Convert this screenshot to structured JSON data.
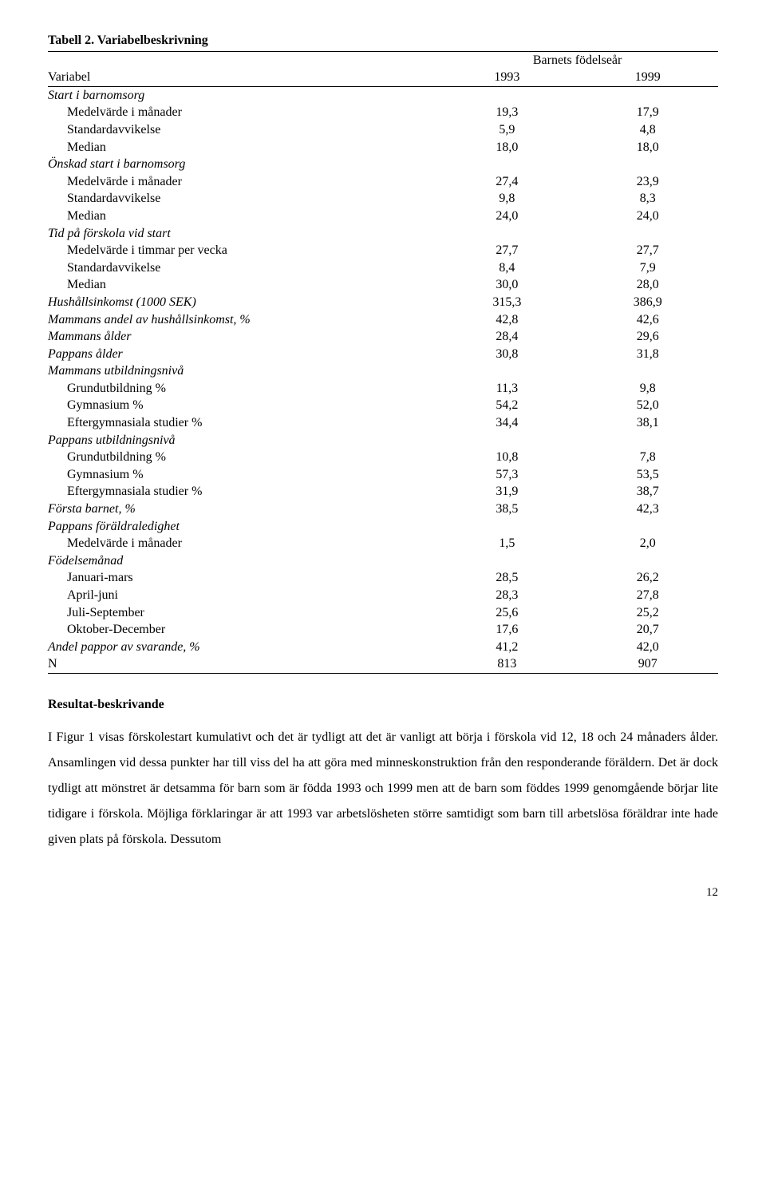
{
  "table": {
    "title": "Tabell 2. Variabelbeskrivning",
    "super_header": "Barnets födelseår",
    "col_label": "Variabel",
    "col_1993": "1993",
    "col_1999": "1999",
    "rows": [
      {
        "type": "section",
        "label": "Start i barnomsorg"
      },
      {
        "type": "sub",
        "label": "Medelvärde i månader",
        "v1": "19,3",
        "v2": "17,9"
      },
      {
        "type": "sub",
        "label": "Standardavvikelse",
        "v1": "5,9",
        "v2": "4,8"
      },
      {
        "type": "sub",
        "label": "Median",
        "v1": "18,0",
        "v2": "18,0"
      },
      {
        "type": "section",
        "label": "Önskad start i barnomsorg"
      },
      {
        "type": "sub",
        "label": "Medelvärde i månader",
        "v1": "27,4",
        "v2": "23,9"
      },
      {
        "type": "sub",
        "label": "Standardavvikelse",
        "v1": "9,8",
        "v2": "8,3"
      },
      {
        "type": "sub",
        "label": "Median",
        "v1": "24,0",
        "v2": "24,0"
      },
      {
        "type": "section",
        "label": "Tid på förskola vid start"
      },
      {
        "type": "sub",
        "label": "Medelvärde i timmar per vecka",
        "v1": "27,7",
        "v2": "27,7"
      },
      {
        "type": "sub",
        "label": "Standardavvikelse",
        "v1": "8,4",
        "v2": "7,9"
      },
      {
        "type": "sub",
        "label": "Median",
        "v1": "30,0",
        "v2": "28,0"
      },
      {
        "type": "section",
        "label": "Hushållsinkomst (1000 SEK)",
        "v1": "315,3",
        "v2": "386,9"
      },
      {
        "type": "section",
        "label": "Mammans andel av hushållsinkomst, %",
        "v1": "42,8",
        "v2": "42,6"
      },
      {
        "type": "section",
        "label": "Mammans ålder",
        "v1": "28,4",
        "v2": "29,6"
      },
      {
        "type": "section",
        "label": "Pappans ålder",
        "v1": "30,8",
        "v2": "31,8"
      },
      {
        "type": "section",
        "label": "Mammans utbildningsnivå"
      },
      {
        "type": "sub",
        "label": "Grundutbildning %",
        "v1": "11,3",
        "v2": "9,8"
      },
      {
        "type": "sub",
        "label": "Gymnasium %",
        "v1": "54,2",
        "v2": "52,0"
      },
      {
        "type": "sub",
        "label": "Eftergymnasiala studier %",
        "v1": "34,4",
        "v2": "38,1"
      },
      {
        "type": "section",
        "label": "Pappans utbildningsnivå"
      },
      {
        "type": "sub",
        "label": "Grundutbildning %",
        "v1": "10,8",
        "v2": "7,8"
      },
      {
        "type": "sub",
        "label": "Gymnasium %",
        "v1": "57,3",
        "v2": "53,5"
      },
      {
        "type": "sub",
        "label": "Eftergymnasiala studier %",
        "v1": "31,9",
        "v2": "38,7"
      },
      {
        "type": "section",
        "label": "Första barnet, %",
        "v1": "38,5",
        "v2": "42,3"
      },
      {
        "type": "section",
        "label": "Pappans föräldraledighet"
      },
      {
        "type": "sub",
        "label": "Medelvärde i månader",
        "v1": "1,5",
        "v2": "2,0"
      },
      {
        "type": "section",
        "label": "Födelsemånad"
      },
      {
        "type": "sub",
        "label": "Januari-mars",
        "v1": "28,5",
        "v2": "26,2"
      },
      {
        "type": "sub",
        "label": "April-juni",
        "v1": "28,3",
        "v2": "27,8"
      },
      {
        "type": "sub",
        "label": "Juli-September",
        "v1": "25,6",
        "v2": "25,2"
      },
      {
        "type": "sub",
        "label": "Oktober-December",
        "v1": "17,6",
        "v2": "20,7"
      },
      {
        "type": "section",
        "label": "Andel pappor av svarande, %",
        "v1": "41,2",
        "v2": "42,0"
      },
      {
        "type": "plain",
        "label": "N",
        "v1": "813",
        "v2": "907"
      }
    ]
  },
  "results": {
    "heading": "Resultat-beskrivande",
    "paragraph": "I Figur 1 visas förskolestart kumulativt och det är tydligt att det är vanligt att börja i förskola vid 12, 18 och 24 månaders ålder. Ansamlingen vid dessa punkter har till viss del ha att göra med minneskonstruktion från den responderande föräldern. Det är dock tydligt att mönstret är detsamma för barn som är födda 1993 och 1999 men att de barn som föddes 1999 genomgående börjar lite tidigare i förskola. Möjliga förklaringar är att 1993 var arbetslösheten större samtidigt som barn till arbetslösa föräldrar inte hade given plats på förskola. Dessutom"
  },
  "page_number": "12"
}
